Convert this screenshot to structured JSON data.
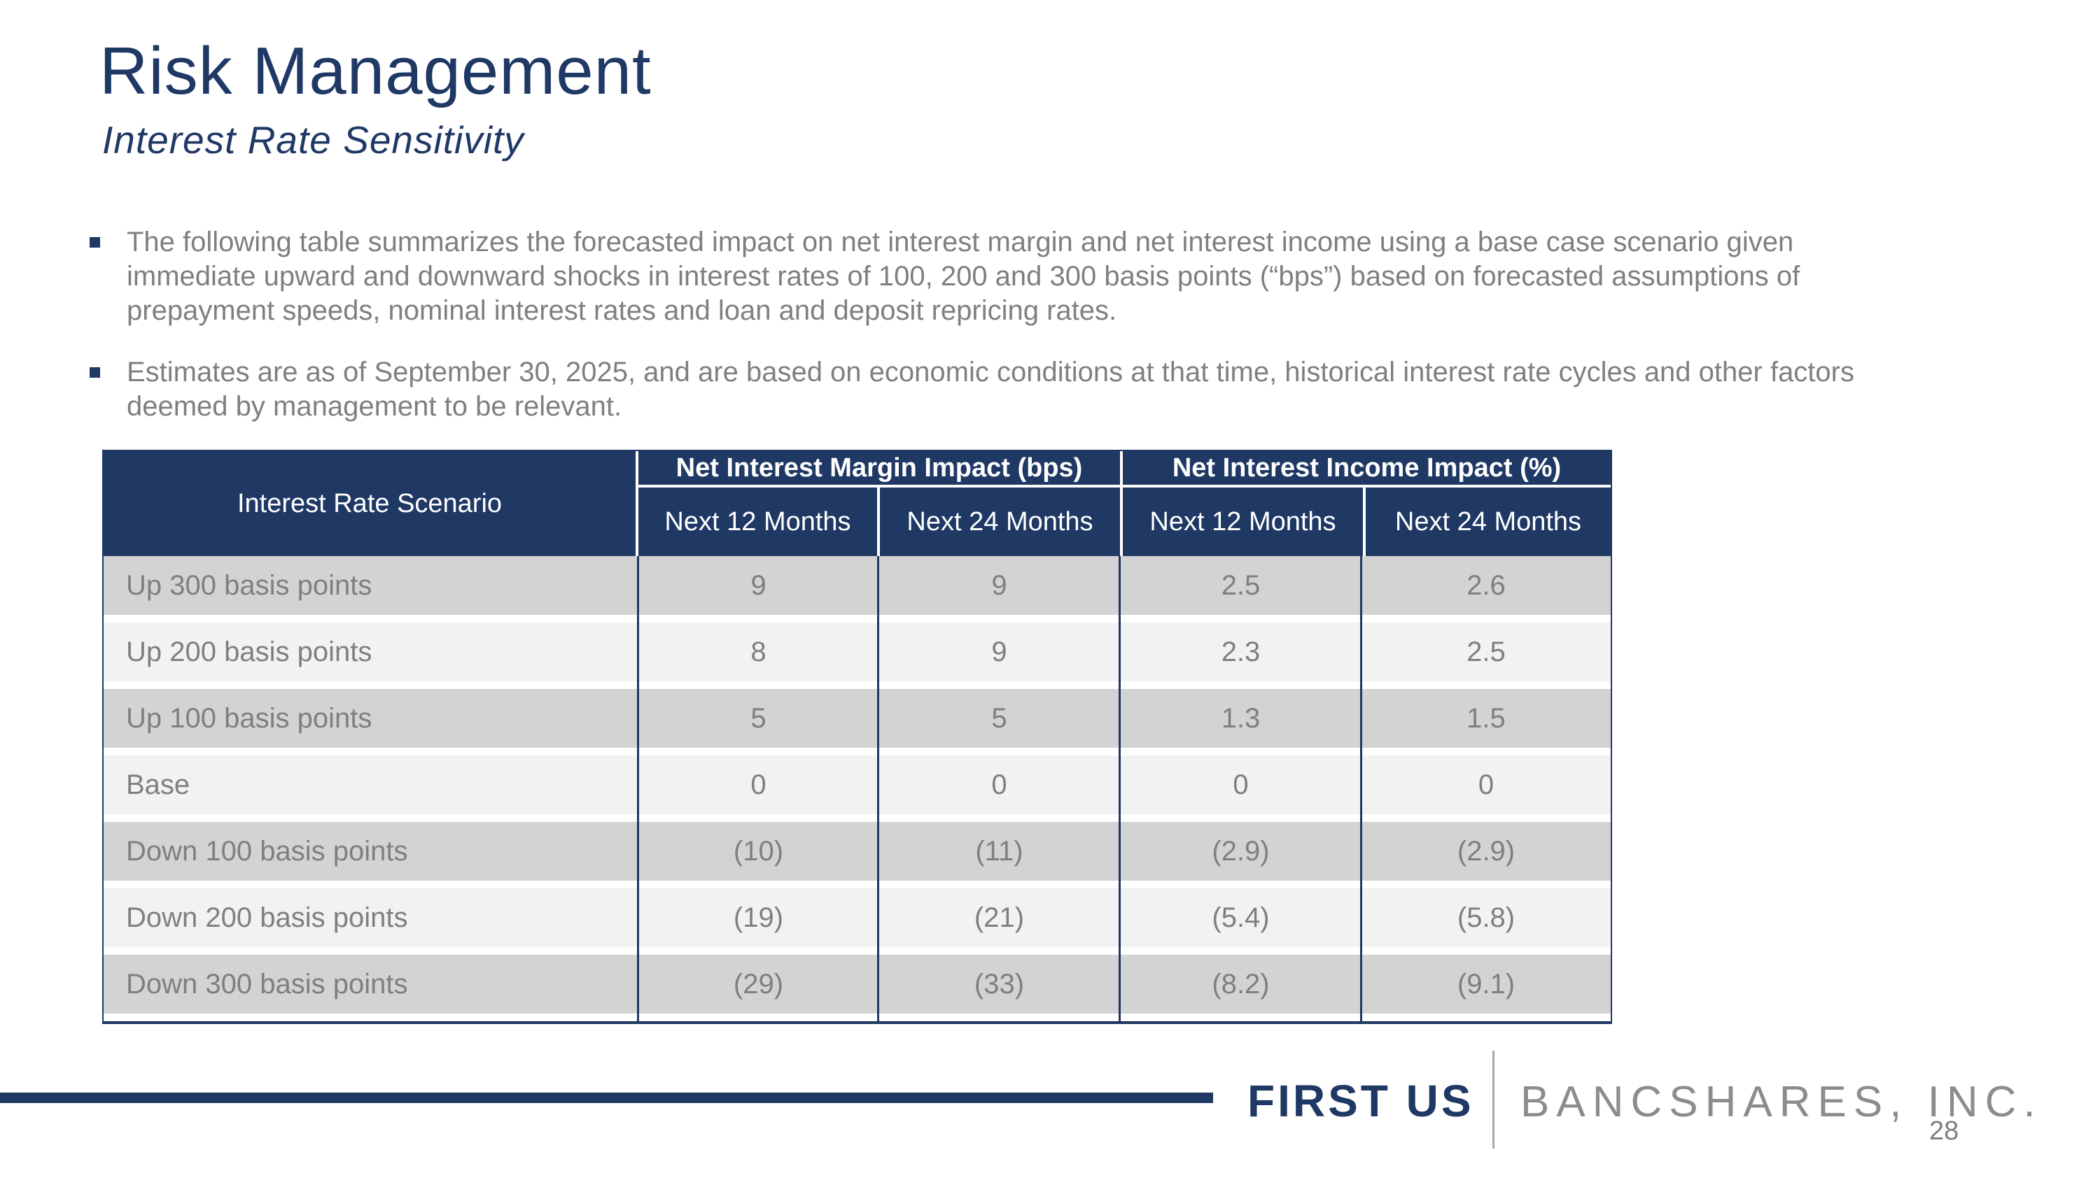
{
  "slide": {
    "title": "Risk Management",
    "subtitle": "Interest Rate Sensitivity",
    "bullets": [
      "The following table summarizes the forecasted impact on net interest margin and net interest income using a base case scenario given immediate upward and downward shocks in interest rates of 100, 200 and 300 basis points (“bps”) based on forecasted assumptions of prepayment speeds, nominal interest rates and loan and deposit repricing rates.",
      "Estimates are as of September 30, 2025, and are based on economic conditions at that time, historical interest rate cycles and other factors deemed by management to be relevant."
    ],
    "page_number": "28"
  },
  "table": {
    "scenario_header": "Interest Rate Scenario",
    "groups": [
      {
        "label": "Net Interest Margin Impact (bps)",
        "sub": [
          "Next 12 Months",
          "Next 24 Months"
        ]
      },
      {
        "label": "Net Interest Income Impact (%)",
        "sub": [
          "Next 12 Months",
          "Next 24 Months"
        ]
      }
    ],
    "rows": [
      {
        "scenario": "Up 300 basis points",
        "values": [
          "9",
          "9",
          "2.5",
          "2.6"
        ]
      },
      {
        "scenario": "Up 200 basis points",
        "values": [
          "8",
          "9",
          "2.3",
          "2.5"
        ]
      },
      {
        "scenario": "Up 100 basis points",
        "values": [
          "5",
          "5",
          "1.3",
          "1.5"
        ]
      },
      {
        "scenario": "Base",
        "values": [
          "0",
          "0",
          "0",
          "0"
        ]
      },
      {
        "scenario": "Down 100 basis points",
        "values": [
          "(10)",
          "(11)",
          "(2.9)",
          "(2.9)"
        ]
      },
      {
        "scenario": "Down 200 basis points",
        "values": [
          "(19)",
          "(21)",
          "(5.4)",
          "(5.8)"
        ]
      },
      {
        "scenario": "Down 300 basis points",
        "values": [
          "(29)",
          "(33)",
          "(8.2)",
          "(9.1)"
        ]
      }
    ]
  },
  "footer": {
    "brand_primary": "FIRST US",
    "brand_secondary": "BANCSHARES, INC."
  },
  "colors": {
    "navy": "#1f3864",
    "row_dark": "#d3d3d3",
    "row_light": "#f2f2f2",
    "text_gray": "#7f7f7f",
    "brand_gray": "#8c8c8c"
  }
}
